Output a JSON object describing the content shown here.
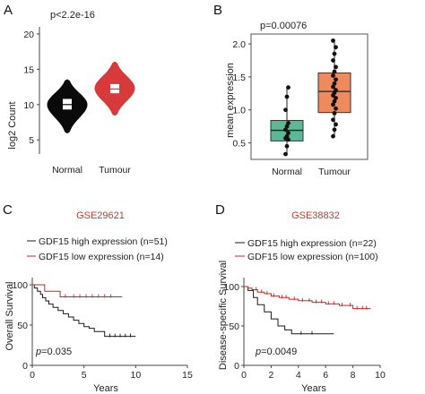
{
  "panels": {
    "A": {
      "letter": "A",
      "annotation": "p<2.2e-16",
      "ylabel": "log2 Count",
      "categories": [
        "Normal",
        "Tumour"
      ],
      "yticks": [
        "5",
        "10",
        "15",
        "20"
      ],
      "colors": {
        "normal": "#0a0a0a",
        "tumour": "#d63a3a"
      }
    },
    "B": {
      "letter": "B",
      "annotation": "p=0.00076",
      "ylabel": "mean expression",
      "categories": [
        "Normal",
        "Tumour"
      ],
      "yticks": [
        "0.5",
        "1.0",
        "1.5",
        "2.0"
      ],
      "colors": {
        "normal": "#5cb896",
        "tumour": "#ef8a5e"
      }
    },
    "C": {
      "letter": "C",
      "dataset": "GSE29621",
      "legend": [
        "GDF15 high expression (n=51)",
        "GDF15 low expression (n=14)"
      ],
      "ylabel": "Overall Survival",
      "xlabel": "Years",
      "pvalue_prefix": "p",
      "pvalue_rest": "=0.035",
      "xticks": [
        "0",
        "5",
        "10",
        "15"
      ],
      "yticks": [
        "0",
        "50",
        "100"
      ]
    },
    "D": {
      "letter": "D",
      "dataset": "GSE38832",
      "legend": [
        "GDF15 high expression (n=22)",
        "GDF15 low expression (n=100)"
      ],
      "ylabel": "Disease-specific Survival",
      "xlabel": "Years",
      "pvalue_prefix": "p",
      "pvalue_rest": "=0.0049",
      "xticks": [
        "0",
        "2",
        "4",
        "6",
        "8",
        "10"
      ],
      "yticks": [
        "0",
        "50",
        "100"
      ]
    }
  },
  "chart_data": [
    {
      "type": "violin",
      "panel": "A",
      "categories": [
        "Normal",
        "Tumour"
      ],
      "ylim": [
        3,
        21
      ],
      "series": [
        {
          "category": "Normal",
          "median": 10.0,
          "q1": 9.3,
          "q3": 10.8,
          "min": 6.0,
          "max": 13.5,
          "mode": 10.0
        },
        {
          "category": "Tumour",
          "median": 12.2,
          "q1": 11.6,
          "q3": 12.9,
          "min": 8.5,
          "max": 16.0,
          "mode": 12.3
        }
      ]
    },
    {
      "type": "box",
      "panel": "B",
      "categories": [
        "Normal",
        "Tumour"
      ],
      "ylim": [
        0.25,
        2.15
      ],
      "series": [
        {
          "category": "Normal",
          "median": 0.69,
          "q1": 0.53,
          "q3": 0.84,
          "points": [
            0.33,
            0.45,
            0.55,
            0.57,
            0.6,
            0.65,
            0.7,
            0.75,
            0.8,
            1.0,
            1.2,
            1.34
          ]
        },
        {
          "category": "Tumour",
          "median": 1.28,
          "q1": 0.96,
          "q3": 1.56,
          "points": [
            0.6,
            0.7,
            0.78,
            0.85,
            0.95,
            1.02,
            1.08,
            1.13,
            1.18,
            1.22,
            1.26,
            1.3,
            1.35,
            1.4,
            1.46,
            1.52,
            1.58,
            1.65,
            1.75,
            1.85,
            1.95,
            2.05
          ]
        }
      ]
    },
    {
      "type": "line",
      "panel": "C",
      "xlim": [
        0,
        15
      ],
      "ylim": [
        0,
        100
      ],
      "series": [
        {
          "name": "GDF15 high expression (n=51)",
          "color": "#1a1a1a",
          "x": [
            0,
            0.2,
            0.5,
            0.8,
            1.0,
            1.3,
            1.6,
            2.0,
            2.5,
            3.0,
            3.5,
            4.0,
            4.5,
            5.0,
            5.5,
            6.0,
            7.0,
            10.0
          ],
          "y": [
            100,
            96,
            92,
            88,
            84,
            80,
            76,
            72,
            68,
            64,
            60,
            56,
            52,
            48,
            46,
            42,
            36,
            36
          ],
          "censor_x": [
            7.5,
            8.0,
            8.5,
            9.0,
            9.5
          ]
        },
        {
          "name": "GDF15 low expression (n=14)",
          "color": "#c62828",
          "x": [
            0,
            1.2,
            2.7,
            8.7
          ],
          "y": [
            100,
            92,
            85,
            85
          ],
          "censor_x": [
            3.2,
            4.0,
            4.6,
            5.2,
            5.8,
            6.4,
            7.0,
            7.6
          ]
        }
      ]
    },
    {
      "type": "line",
      "panel": "D",
      "xlim": [
        0,
        10
      ],
      "ylim": [
        0,
        100
      ],
      "series": [
        {
          "name": "GDF15 high expression (n=22)",
          "color": "#1a1a1a",
          "x": [
            0,
            0.3,
            0.7,
            1.0,
            1.5,
            2.0,
            2.5,
            3.0,
            3.5,
            6.6
          ],
          "y": [
            100,
            95,
            86,
            77,
            68,
            59,
            50,
            45,
            40,
            40
          ],
          "censor_x": [
            4.2,
            5.0
          ]
        },
        {
          "name": "GDF15 low expression (n=100)",
          "color": "#c62828",
          "x": [
            0,
            0.3,
            0.6,
            1.0,
            1.5,
            2.0,
            2.6,
            3.3,
            4.0,
            5.0,
            6.0,
            7.0,
            8.0,
            9.3
          ],
          "y": [
            100,
            98,
            96,
            93,
            91,
            88,
            86,
            84,
            82,
            80,
            78,
            76,
            72,
            72
          ],
          "censor_x": [
            0.9,
            1.3,
            1.7,
            2.2,
            2.8,
            3.1,
            3.7,
            4.3,
            4.8,
            5.3,
            5.7,
            6.2,
            6.6,
            7.2,
            7.8,
            8.3,
            8.7,
            9.0
          ]
        }
      ]
    }
  ]
}
